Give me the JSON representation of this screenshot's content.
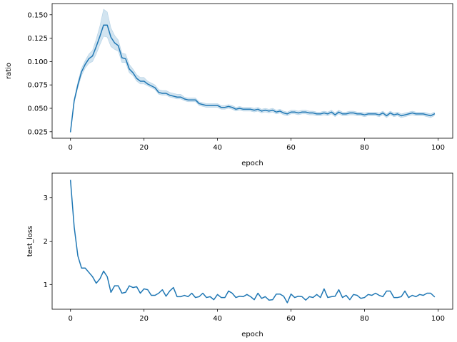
{
  "chart_data": [
    {
      "type": "line",
      "xlabel": "epoch",
      "ylabel": "ratio",
      "xlim": [
        -5,
        104
      ],
      "ylim": [
        0.018,
        0.162
      ],
      "xticks": [
        0,
        20,
        40,
        60,
        80,
        100
      ],
      "xtick_labels": [
        "0",
        "20",
        "40",
        "60",
        "80",
        "100"
      ],
      "yticks": [
        0.025,
        0.05,
        0.075,
        0.1,
        0.125,
        0.15
      ],
      "ytick_labels": [
        "0.025",
        "0.050",
        "0.075",
        "0.100",
        "0.125",
        "0.150"
      ],
      "grid": false,
      "line_color": "#1f77b4",
      "band_color": "#1f77b4",
      "series": [
        {
          "x": [
            0,
            1,
            2,
            3,
            4,
            5,
            6,
            7,
            8,
            9,
            10,
            11,
            12,
            13,
            14,
            15,
            16,
            17,
            18,
            19,
            20,
            21,
            22,
            23,
            24,
            25,
            26,
            27,
            28,
            29,
            30,
            31,
            32,
            33,
            34,
            35,
            36,
            37,
            38,
            39,
            40,
            41,
            42,
            43,
            44,
            45,
            46,
            47,
            48,
            49,
            50,
            51,
            52,
            53,
            54,
            55,
            56,
            57,
            58,
            59,
            60,
            61,
            62,
            63,
            64,
            65,
            66,
            67,
            68,
            69,
            70,
            71,
            72,
            73,
            74,
            75,
            76,
            77,
            78,
            79,
            80,
            81,
            82,
            83,
            84,
            85,
            86,
            87,
            88,
            89,
            90,
            91,
            92,
            93,
            94,
            95,
            96,
            97,
            98,
            99
          ],
          "y": [
            0.025,
            0.058,
            0.075,
            0.089,
            0.097,
            0.103,
            0.106,
            0.116,
            0.127,
            0.139,
            0.139,
            0.126,
            0.12,
            0.117,
            0.104,
            0.103,
            0.092,
            0.088,
            0.082,
            0.079,
            0.079,
            0.076,
            0.074,
            0.072,
            0.067,
            0.066,
            0.066,
            0.064,
            0.063,
            0.062,
            0.062,
            0.06,
            0.059,
            0.059,
            0.059,
            0.055,
            0.054,
            0.053,
            0.053,
            0.053,
            0.053,
            0.051,
            0.051,
            0.052,
            0.051,
            0.049,
            0.05,
            0.049,
            0.049,
            0.049,
            0.048,
            0.049,
            0.047,
            0.048,
            0.047,
            0.048,
            0.046,
            0.047,
            0.045,
            0.044,
            0.046,
            0.046,
            0.045,
            0.046,
            0.046,
            0.045,
            0.045,
            0.044,
            0.044,
            0.045,
            0.044,
            0.046,
            0.043,
            0.046,
            0.044,
            0.044,
            0.045,
            0.045,
            0.044,
            0.044,
            0.043,
            0.044,
            0.044,
            0.044,
            0.043,
            0.045,
            0.042,
            0.045,
            0.043,
            0.044,
            0.042,
            0.043,
            0.044,
            0.045,
            0.044,
            0.044,
            0.044,
            0.043,
            0.042,
            0.044
          ],
          "y_lower": [
            0.024,
            0.056,
            0.072,
            0.085,
            0.093,
            0.098,
            0.1,
            0.108,
            0.118,
            0.127,
            0.126,
            0.116,
            0.113,
            0.111,
            0.099,
            0.099,
            0.088,
            0.085,
            0.079,
            0.076,
            0.076,
            0.074,
            0.072,
            0.07,
            0.065,
            0.064,
            0.064,
            0.062,
            0.061,
            0.06,
            0.06,
            0.058,
            0.057,
            0.057,
            0.057,
            0.053,
            0.052,
            0.051,
            0.051,
            0.051,
            0.051,
            0.049,
            0.049,
            0.05,
            0.049,
            0.047,
            0.048,
            0.047,
            0.047,
            0.047,
            0.046,
            0.047,
            0.045,
            0.046,
            0.045,
            0.046,
            0.044,
            0.045,
            0.043,
            0.042,
            0.044,
            0.044,
            0.043,
            0.044,
            0.044,
            0.043,
            0.043,
            0.042,
            0.042,
            0.043,
            0.042,
            0.044,
            0.041,
            0.044,
            0.042,
            0.042,
            0.043,
            0.043,
            0.042,
            0.042,
            0.041,
            0.042,
            0.042,
            0.042,
            0.041,
            0.043,
            0.04,
            0.043,
            0.041,
            0.042,
            0.04,
            0.041,
            0.042,
            0.043,
            0.042,
            0.042,
            0.042,
            0.041,
            0.04,
            0.042
          ],
          "y_upper": [
            0.026,
            0.06,
            0.078,
            0.093,
            0.101,
            0.108,
            0.112,
            0.124,
            0.138,
            0.156,
            0.153,
            0.136,
            0.128,
            0.123,
            0.109,
            0.108,
            0.097,
            0.092,
            0.086,
            0.083,
            0.083,
            0.079,
            0.077,
            0.075,
            0.07,
            0.069,
            0.069,
            0.067,
            0.066,
            0.065,
            0.065,
            0.062,
            0.061,
            0.061,
            0.061,
            0.057,
            0.056,
            0.055,
            0.055,
            0.055,
            0.055,
            0.053,
            0.053,
            0.054,
            0.053,
            0.051,
            0.052,
            0.051,
            0.051,
            0.051,
            0.05,
            0.051,
            0.049,
            0.05,
            0.049,
            0.05,
            0.048,
            0.049,
            0.047,
            0.046,
            0.048,
            0.048,
            0.047,
            0.048,
            0.048,
            0.047,
            0.047,
            0.046,
            0.046,
            0.047,
            0.046,
            0.048,
            0.045,
            0.048,
            0.046,
            0.046,
            0.047,
            0.047,
            0.046,
            0.046,
            0.045,
            0.046,
            0.046,
            0.046,
            0.045,
            0.047,
            0.044,
            0.047,
            0.045,
            0.046,
            0.044,
            0.045,
            0.046,
            0.047,
            0.046,
            0.046,
            0.046,
            0.045,
            0.044,
            0.046
          ]
        }
      ]
    },
    {
      "type": "line",
      "xlabel": "epoch",
      "ylabel": "test_loss",
      "xlim": [
        -5,
        104
      ],
      "ylim": [
        0.43,
        3.57
      ],
      "xticks": [
        0,
        20,
        40,
        60,
        80,
        100
      ],
      "xtick_labels": [
        "0",
        "20",
        "40",
        "60",
        "80",
        "100"
      ],
      "yticks": [
        1,
        2,
        3
      ],
      "ytick_labels": [
        "1",
        "2",
        "3"
      ],
      "grid": false,
      "line_color": "#1f77b4",
      "series": [
        {
          "x": [
            0,
            1,
            2,
            3,
            4,
            5,
            6,
            7,
            8,
            9,
            10,
            11,
            12,
            13,
            14,
            15,
            16,
            17,
            18,
            19,
            20,
            21,
            22,
            23,
            24,
            25,
            26,
            27,
            28,
            29,
            30,
            31,
            32,
            33,
            34,
            35,
            36,
            37,
            38,
            39,
            40,
            41,
            42,
            43,
            44,
            45,
            46,
            47,
            48,
            49,
            50,
            51,
            52,
            53,
            54,
            55,
            56,
            57,
            58,
            59,
            60,
            61,
            62,
            63,
            64,
            65,
            66,
            67,
            68,
            69,
            70,
            71,
            72,
            73,
            74,
            75,
            76,
            77,
            78,
            79,
            80,
            81,
            82,
            83,
            84,
            85,
            86,
            87,
            88,
            89,
            90,
            91,
            92,
            93,
            94,
            95,
            96,
            97,
            98,
            99
          ],
          "y": [
            3.4,
            2.33,
            1.66,
            1.38,
            1.38,
            1.28,
            1.18,
            1.03,
            1.13,
            1.31,
            1.18,
            0.82,
            0.97,
            0.97,
            0.8,
            0.82,
            0.97,
            0.93,
            0.95,
            0.8,
            0.9,
            0.88,
            0.75,
            0.75,
            0.8,
            0.88,
            0.73,
            0.85,
            0.93,
            0.72,
            0.72,
            0.75,
            0.72,
            0.8,
            0.7,
            0.72,
            0.8,
            0.7,
            0.72,
            0.65,
            0.77,
            0.7,
            0.7,
            0.85,
            0.8,
            0.7,
            0.73,
            0.72,
            0.77,
            0.72,
            0.65,
            0.8,
            0.68,
            0.72,
            0.64,
            0.65,
            0.78,
            0.78,
            0.73,
            0.58,
            0.78,
            0.7,
            0.73,
            0.72,
            0.64,
            0.72,
            0.7,
            0.77,
            0.7,
            0.9,
            0.7,
            0.72,
            0.73,
            0.88,
            0.7,
            0.75,
            0.65,
            0.77,
            0.75,
            0.68,
            0.7,
            0.77,
            0.75,
            0.8,
            0.75,
            0.72,
            0.85,
            0.85,
            0.7,
            0.7,
            0.72,
            0.85,
            0.7,
            0.75,
            0.72,
            0.77,
            0.75,
            0.8,
            0.8,
            0.72
          ]
        }
      ]
    }
  ]
}
